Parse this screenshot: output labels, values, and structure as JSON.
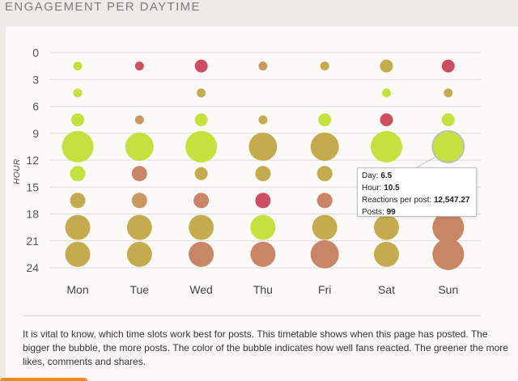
{
  "widget": {
    "title": "ENGAGEMENT PER DAYTIME",
    "description": "It is vital to know, which time slots work best for posts. This timetable shows when this page has posted. The bigger the bubble, the more posts. The color of the bubble indicates how well fans reacted. The greener the more likes, comments and shares."
  },
  "tooltip": {
    "day_label": "Day:",
    "day_value": "6.5",
    "hour_label": "Hour:",
    "hour_value": "10.5",
    "reactions_label": "Reactions per post:",
    "reactions_value": "12,547.27",
    "posts_label": "Posts:",
    "posts_value": "99"
  },
  "colors": {
    "green": "#c5e13e",
    "olive": "#c4ac4e",
    "tan": "#c89860",
    "salmon": "#c98666",
    "red": "#cd4e61",
    "accent_orange": "#ef8b1f"
  },
  "chart_data": {
    "type": "scatter",
    "title": "ENGAGEMENT PER DAYTIME",
    "xlabel": "",
    "ylabel": "HOUR",
    "x_categories": [
      "Mon",
      "Tue",
      "Wed",
      "Thu",
      "Fri",
      "Sat",
      "Sun"
    ],
    "y_ticks": [
      "0",
      "3",
      "6",
      "9",
      "12",
      "15",
      "18",
      "21",
      "24"
    ],
    "ylim": [
      0,
      24
    ],
    "y_reversed": true,
    "grid": true,
    "size_encodes": "posts",
    "color_encodes": "reactions per post (greener = more)",
    "bubbles": [
      {
        "day": "Mon",
        "hour": 1.5,
        "size": 1,
        "color": "green"
      },
      {
        "day": "Mon",
        "hour": 4.5,
        "size": 1,
        "color": "green"
      },
      {
        "day": "Mon",
        "hour": 7.5,
        "size": 2,
        "color": "green"
      },
      {
        "day": "Mon",
        "hour": 10.5,
        "size": 6,
        "color": "green"
      },
      {
        "day": "Mon",
        "hour": 13.5,
        "size": 3,
        "color": "green"
      },
      {
        "day": "Mon",
        "hour": 16.5,
        "size": 3,
        "color": "olive"
      },
      {
        "day": "Mon",
        "hour": 19.5,
        "size": 4,
        "color": "olive"
      },
      {
        "day": "Mon",
        "hour": 22.5,
        "size": 4,
        "color": "olive"
      },
      {
        "day": "Tue",
        "hour": 1.5,
        "size": 1,
        "color": "red"
      },
      {
        "day": "Tue",
        "hour": 7.5,
        "size": 1,
        "color": "tan"
      },
      {
        "day": "Tue",
        "hour": 10.5,
        "size": 5,
        "color": "green"
      },
      {
        "day": "Tue",
        "hour": 13.5,
        "size": 3,
        "color": "salmon"
      },
      {
        "day": "Tue",
        "hour": 16.5,
        "size": 3,
        "color": "tan"
      },
      {
        "day": "Tue",
        "hour": 19.5,
        "size": 4,
        "color": "olive"
      },
      {
        "day": "Tue",
        "hour": 22.5,
        "size": 4,
        "color": "olive"
      },
      {
        "day": "Wed",
        "hour": 1.5,
        "size": 2,
        "color": "red"
      },
      {
        "day": "Wed",
        "hour": 4.5,
        "size": 1,
        "color": "olive"
      },
      {
        "day": "Wed",
        "hour": 7.5,
        "size": 2,
        "color": "green"
      },
      {
        "day": "Wed",
        "hour": 10.5,
        "size": 6,
        "color": "green"
      },
      {
        "day": "Wed",
        "hour": 13.5,
        "size": 2,
        "color": "olive"
      },
      {
        "day": "Wed",
        "hour": 16.5,
        "size": 3,
        "color": "salmon"
      },
      {
        "day": "Wed",
        "hour": 19.5,
        "size": 4,
        "color": "olive"
      },
      {
        "day": "Wed",
        "hour": 22.5,
        "size": 4,
        "color": "salmon"
      },
      {
        "day": "Thu",
        "hour": 1.5,
        "size": 1,
        "color": "tan"
      },
      {
        "day": "Thu",
        "hour": 7.5,
        "size": 1,
        "color": "olive"
      },
      {
        "day": "Thu",
        "hour": 10.5,
        "size": 5,
        "color": "olive"
      },
      {
        "day": "Thu",
        "hour": 13.5,
        "size": 3,
        "color": "olive"
      },
      {
        "day": "Thu",
        "hour": 16.5,
        "size": 3,
        "color": "red"
      },
      {
        "day": "Thu",
        "hour": 19.5,
        "size": 4,
        "color": "green"
      },
      {
        "day": "Thu",
        "hour": 22.5,
        "size": 4,
        "color": "salmon"
      },
      {
        "day": "Fri",
        "hour": 1.5,
        "size": 1,
        "color": "olive"
      },
      {
        "day": "Fri",
        "hour": 7.5,
        "size": 2,
        "color": "green"
      },
      {
        "day": "Fri",
        "hour": 10.5,
        "size": 5,
        "color": "olive"
      },
      {
        "day": "Fri",
        "hour": 13.5,
        "size": 3,
        "color": "olive"
      },
      {
        "day": "Fri",
        "hour": 16.5,
        "size": 3,
        "color": "salmon"
      },
      {
        "day": "Fri",
        "hour": 19.5,
        "size": 4,
        "color": "olive"
      },
      {
        "day": "Fri",
        "hour": 22.5,
        "size": 5,
        "color": "salmon"
      },
      {
        "day": "Sat",
        "hour": 1.5,
        "size": 2,
        "color": "olive"
      },
      {
        "day": "Sat",
        "hour": 4.5,
        "size": 1,
        "color": "green"
      },
      {
        "day": "Sat",
        "hour": 7.5,
        "size": 2,
        "color": "red"
      },
      {
        "day": "Sat",
        "hour": 10.5,
        "size": 6,
        "color": "green"
      },
      {
        "day": "Sat",
        "hour": 19.5,
        "size": 4,
        "color": "olive"
      },
      {
        "day": "Sat",
        "hour": 22.5,
        "size": 4,
        "color": "olive"
      },
      {
        "day": "Sun",
        "hour": 1.5,
        "size": 2,
        "color": "red"
      },
      {
        "day": "Sun",
        "hour": 4.5,
        "size": 1,
        "color": "olive"
      },
      {
        "day": "Sun",
        "hour": 7.5,
        "size": 2,
        "color": "green"
      },
      {
        "day": "Sun",
        "hour": 10.5,
        "size": 6,
        "color": "green",
        "hovered": true
      },
      {
        "day": "Sun",
        "hour": 19.5,
        "size": 6,
        "color": "salmon"
      },
      {
        "day": "Sun",
        "hour": 22.5,
        "size": 6,
        "color": "salmon"
      }
    ]
  }
}
